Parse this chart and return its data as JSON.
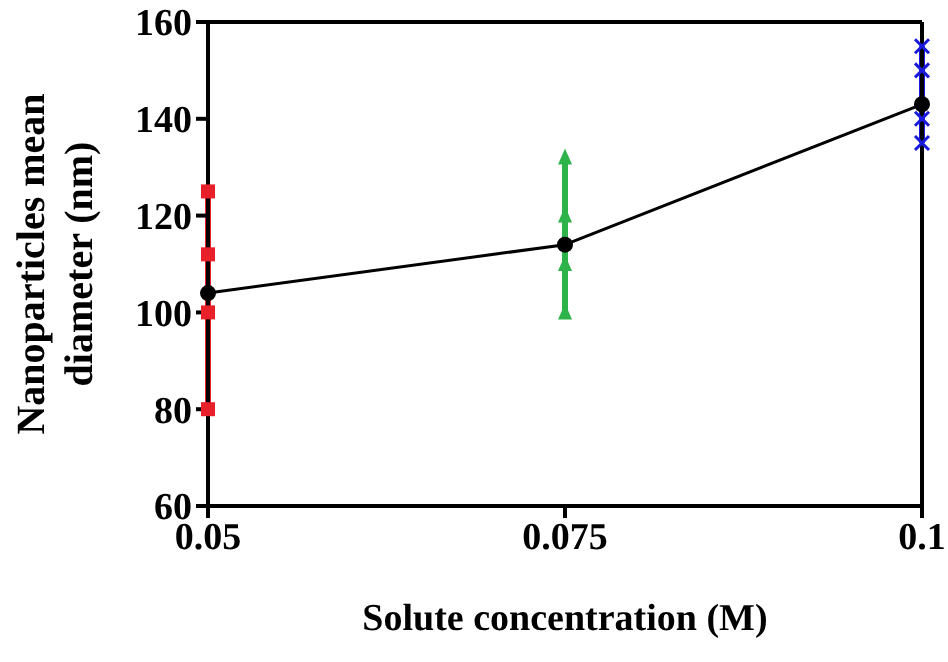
{
  "chart_data": {
    "type": "line",
    "xlabel": "Solute concentration (M)",
    "ylabel": "Nanoparticles mean diameter (nm)",
    "xlim": [
      0.05,
      0.1
    ],
    "xticks": [
      0.05,
      0.075,
      0.1
    ],
    "ylim": [
      60,
      160
    ],
    "yticks": [
      60,
      80,
      100,
      120,
      140,
      160
    ],
    "series": [
      {
        "x": [
          0.05,
          0.05,
          0.05,
          0.05
        ],
        "values": [
          80,
          100,
          112,
          125
        ],
        "color": "#e8202a",
        "marker": "square"
      },
      {
        "x": [
          0.075,
          0.075,
          0.075,
          0.075
        ],
        "values": [
          100,
          110,
          120,
          132
        ],
        "color": "#2eb34a",
        "marker": "triangle"
      },
      {
        "x": [
          0.1,
          0.1,
          0.1,
          0.1
        ],
        "values": [
          135,
          140,
          150,
          155
        ],
        "color": "#1a1adc",
        "marker": "cross"
      },
      {
        "x": [
          0.05,
          0.075,
          0.1
        ],
        "values": [
          104,
          114,
          143
        ],
        "color": "#000000",
        "marker": "circle"
      }
    ]
  }
}
